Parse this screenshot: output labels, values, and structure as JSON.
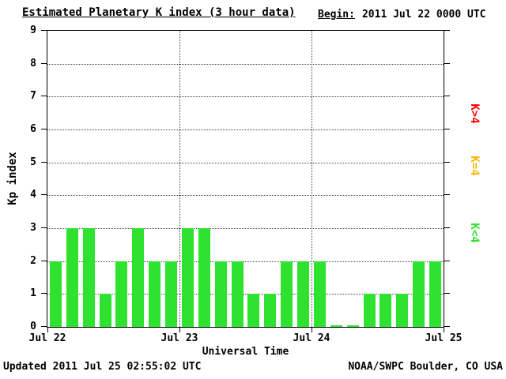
{
  "header": {
    "title": "Estimated Planetary K index (3 hour data)",
    "begin_label": "Begin:",
    "begin_value": "2011 Jul 22 0000 UTC"
  },
  "axes": {
    "ylabel": "Kp index",
    "xlabel": "Universal Time"
  },
  "legend": [
    {
      "label": "K>4",
      "color": "#ff0000"
    },
    {
      "label": "K=4",
      "color": "#ffb400"
    },
    {
      "label": "K<4",
      "color": "#2fe22f"
    }
  ],
  "footer": {
    "updated": "Updated 2011 Jul 25 02:55:02 UTC",
    "credit": "NOAA/SWPC Boulder, CO USA"
  },
  "chart_data": {
    "type": "bar",
    "title": "Estimated Planetary K index (3 hour data)",
    "xlabel": "Universal Time",
    "ylabel": "Kp index",
    "ylim": [
      0,
      9
    ],
    "y_ticks": [
      0,
      1,
      2,
      3,
      4,
      5,
      6,
      7,
      8,
      9
    ],
    "x_tick_labels": [
      "Jul 22",
      "Jul 23",
      "Jul 24",
      "Jul 25"
    ],
    "interval_hours": 3,
    "grid": "dotted",
    "legend_position": "right",
    "bar_color": "#2fe22f",
    "values": [
      2,
      3,
      3,
      1,
      2,
      3,
      2,
      2,
      3,
      3,
      2,
      2,
      1,
      1,
      2,
      2,
      2,
      0,
      0,
      1,
      1,
      1,
      2,
      2
    ]
  }
}
